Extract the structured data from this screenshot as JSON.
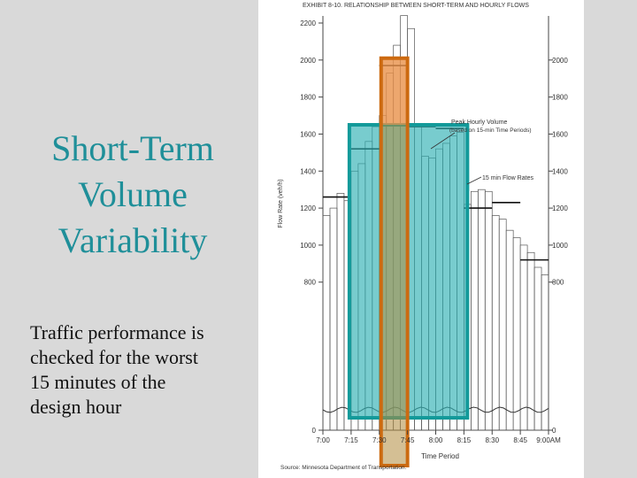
{
  "slide": {
    "title_lines": [
      "Short-Term",
      "Volume",
      "Variability"
    ],
    "body_lines": [
      "Traffic performance is",
      "checked for the worst",
      "15 minutes of the",
      "design hour"
    ]
  },
  "figure": {
    "exhibit_title": "EXHIBIT 8-10.  RELATIONSHIP BETWEEN SHORT-TERM AND HOURLY FLOWS",
    "source": "Source: Minnesota Department of Transportation.",
    "annotation_peak_1": "Peak Hourly Volume",
    "annotation_peak_2": "(based on 15-min Time Periods)",
    "annotation_flow": "15 min Flow Rates"
  },
  "colors": {
    "title": "#1f8f99",
    "teal_fill": "#2fb0b4",
    "teal_stroke": "#139a9a",
    "orange_fill": "#e8914a",
    "orange_stroke": "#cc6a10"
  },
  "chart_data": {
    "type": "bar",
    "title": "EXHIBIT 8-10.  RELATIONSHIP BETWEEN SHORT-TERM AND HOURLY FLOWS",
    "xlabel": "Time Period",
    "ylabel": "Flow Rate (veh/h)",
    "ylim": [
      0,
      2200
    ],
    "yticks": [
      0,
      800,
      1000,
      1200,
      1400,
      1600,
      1800,
      2000,
      2200
    ],
    "yticks_right": [
      0,
      800,
      1000,
      1200,
      1400,
      1600,
      1800,
      2000
    ],
    "xticks": [
      "7:00",
      "7:15",
      "7:30",
      "7:45",
      "8:00",
      "8:15",
      "8:30",
      "8:45",
      "9:00AM"
    ],
    "x_start_min": 0,
    "x_end_min": 120,
    "bars": [
      {
        "start": 0,
        "end": 3.75,
        "value": 1160
      },
      {
        "start": 3.75,
        "end": 7.5,
        "value": 1200
      },
      {
        "start": 7.5,
        "end": 11.25,
        "value": 1280
      },
      {
        "start": 11.25,
        "end": 15,
        "value": 1240
      },
      {
        "start": 15,
        "end": 18.75,
        "value": 1400
      },
      {
        "start": 18.75,
        "end": 22.5,
        "value": 1440
      },
      {
        "start": 22.5,
        "end": 26.25,
        "value": 1560
      },
      {
        "start": 26.25,
        "end": 30,
        "value": 1640
      },
      {
        "start": 30,
        "end": 33.75,
        "value": 1700
      },
      {
        "start": 33.75,
        "end": 37.5,
        "value": 1930
      },
      {
        "start": 37.5,
        "end": 41.25,
        "value": 2080
      },
      {
        "start": 41.25,
        "end": 45,
        "value": 2240
      },
      {
        "start": 45,
        "end": 48.75,
        "value": 2170
      },
      {
        "start": 48.75,
        "end": 52.5,
        "value": 1640
      },
      {
        "start": 52.5,
        "end": 56.25,
        "value": 1480
      },
      {
        "start": 56.25,
        "end": 60,
        "value": 1470
      },
      {
        "start": 60,
        "end": 63.75,
        "value": 1520
      },
      {
        "start": 63.75,
        "end": 67.5,
        "value": 1550
      },
      {
        "start": 67.5,
        "end": 71.25,
        "value": 1590
      },
      {
        "start": 71.25,
        "end": 75,
        "value": 1610
      },
      {
        "start": 75,
        "end": 78.75,
        "value": 1220
      },
      {
        "start": 78.75,
        "end": 82.5,
        "value": 1290
      },
      {
        "start": 82.5,
        "end": 86.25,
        "value": 1300
      },
      {
        "start": 86.25,
        "end": 90,
        "value": 1290
      },
      {
        "start": 90,
        "end": 93.75,
        "value": 1160
      },
      {
        "start": 93.75,
        "end": 97.5,
        "value": 1140
      },
      {
        "start": 97.5,
        "end": 101.25,
        "value": 1080
      },
      {
        "start": 101.25,
        "end": 105,
        "value": 1040
      },
      {
        "start": 105,
        "end": 108.75,
        "value": 1000
      },
      {
        "start": 108.75,
        "end": 112.5,
        "value": 960
      },
      {
        "start": 112.5,
        "end": 116.25,
        "value": 880
      },
      {
        "start": 116.25,
        "end": 120,
        "value": 840
      }
    ],
    "hourly_levels": [
      {
        "start": 0,
        "end": 15,
        "value": 1260
      },
      {
        "start": 15,
        "end": 30,
        "value": 1520
      },
      {
        "start": 30,
        "end": 45,
        "value": 1970
      },
      {
        "start": 45,
        "end": 60,
        "value": 1640
      },
      {
        "start": 60,
        "end": 75,
        "value": 1630
      },
      {
        "start": 75,
        "end": 90,
        "value": 1200
      },
      {
        "start": 90,
        "end": 105,
        "value": 1230
      },
      {
        "start": 105,
        "end": 120,
        "value": 920
      }
    ],
    "peak_hourly_volume": 1650,
    "highlights": [
      {
        "name": "peak-hour",
        "start": 15,
        "end": 75,
        "value": 1650
      },
      {
        "name": "peak-15-min",
        "start": 30,
        "end": 45,
        "value": 1970
      }
    ]
  }
}
